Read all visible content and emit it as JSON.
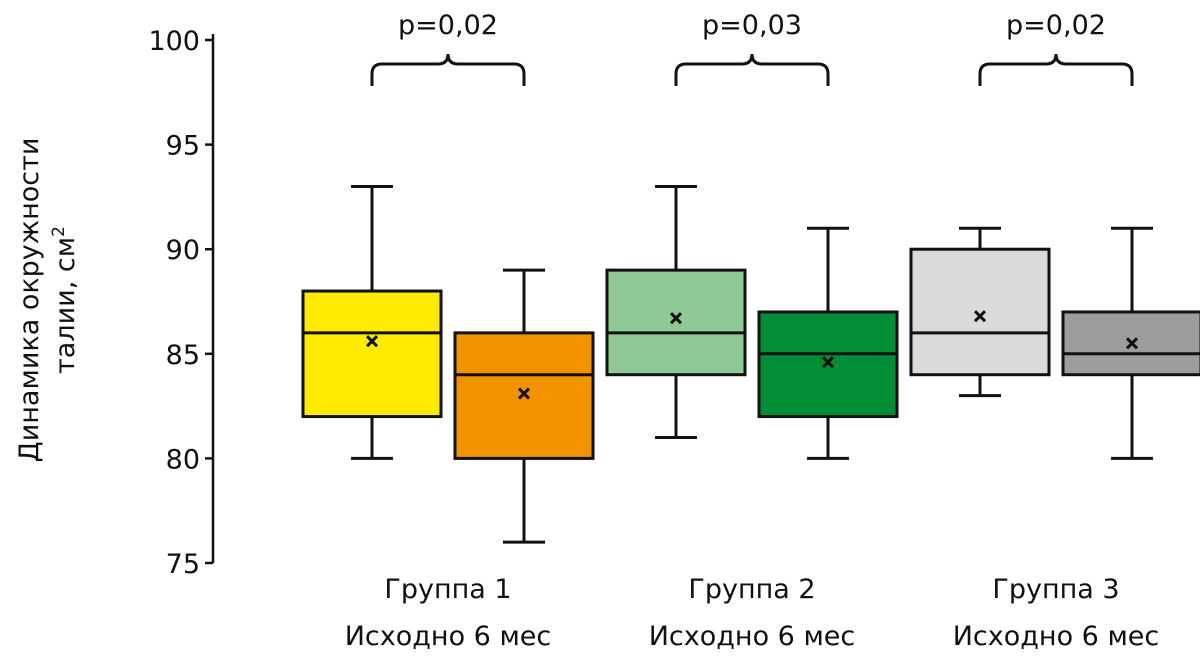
{
  "chart_data": {
    "type": "box",
    "ylabel_line1": "Динамика окружности",
    "ylabel_line2": "талии, см",
    "ylabel_sup": "2",
    "ylim": [
      75,
      100
    ],
    "yticks": [
      75,
      80,
      85,
      90,
      95,
      100
    ],
    "groups": [
      {
        "label": "Группа 1",
        "sublabel": "Исходно 6 мес",
        "pvalue": "p=0,02",
        "boxes": [
          {
            "name": "Исходно",
            "min": 80,
            "q1": 82,
            "median": 86,
            "q3": 88,
            "max": 93,
            "mean": 85.6,
            "color": "#FFEB00"
          },
          {
            "name": "6 мес",
            "min": 76,
            "q1": 80,
            "median": 84,
            "q3": 86,
            "max": 89,
            "mean": 83.1,
            "color": "#F39200"
          }
        ]
      },
      {
        "label": "Группа 2",
        "sublabel": "Исходно 6 мес",
        "pvalue": "p=0,03",
        "boxes": [
          {
            "name": "Исходно",
            "min": 81,
            "q1": 84,
            "median": 86,
            "q3": 89,
            "max": 93,
            "mean": 86.7,
            "color": "#8FCA96"
          },
          {
            "name": "6 мес",
            "min": 80,
            "q1": 82,
            "median": 85,
            "q3": 87,
            "max": 91,
            "mean": 84.6,
            "color": "#008D36"
          }
        ]
      },
      {
        "label": "Группа 3",
        "sublabel": "Исходно 6 мес",
        "pvalue": "p=0,02",
        "boxes": [
          {
            "name": "Исходно",
            "min": 83,
            "q1": 84,
            "median": 86,
            "q3": 90,
            "max": 91,
            "mean": 86.8,
            "color": "#DADADA"
          },
          {
            "name": "6 мес",
            "min": 80,
            "q1": 84,
            "median": 85,
            "q3": 87,
            "max": 91,
            "mean": 85.5,
            "color": "#9D9D9C"
          }
        ]
      }
    ]
  }
}
